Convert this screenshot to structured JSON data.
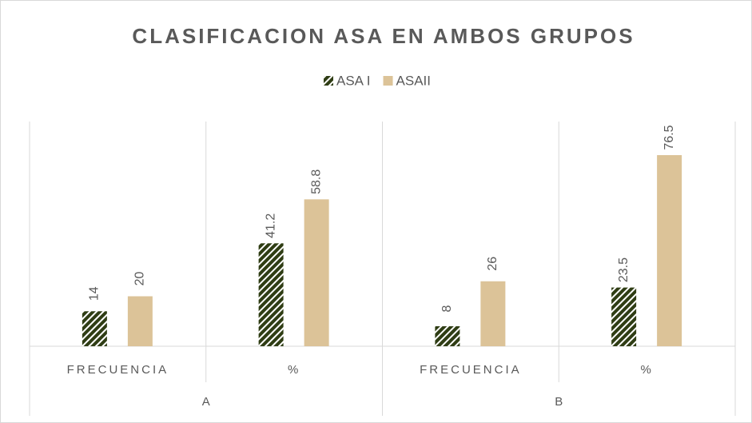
{
  "chart_data": {
    "type": "bar",
    "title": "CLASIFICACION ASA EN AMBOS GRUPOS",
    "categories": [
      "FRECUENCIA",
      "%",
      "FRECUENCIA",
      "%"
    ],
    "groups": [
      "A",
      "B"
    ],
    "series": [
      {
        "name": "ASA I",
        "color": "#2f3d14",
        "pattern": "hatch",
        "values": [
          14,
          41.2,
          8,
          23.5
        ]
      },
      {
        "name": "ASAII",
        "color": "#dcc398",
        "values": [
          20,
          58.8,
          26,
          76.5
        ]
      }
    ],
    "legend": "top"
  }
}
